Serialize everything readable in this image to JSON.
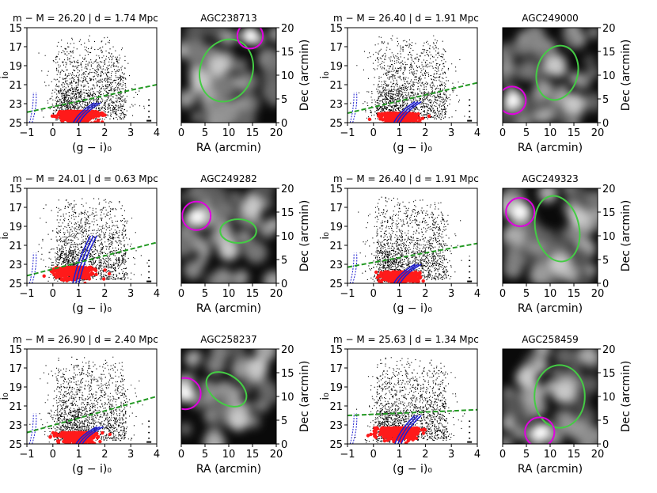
{
  "figure": {
    "cmd_ylabel": "i₀",
    "cmd_xlabel": "(g − i)₀",
    "map_xlabel": "RA (arcmin)",
    "map_ylabel": "Dec (arcmin)"
  },
  "colors": {
    "rgb_stars": "#ff1a1a",
    "isochrone": "#1f1fd0",
    "trgb_line": "#229922",
    "field_stars": "#000000",
    "galaxy_ellipse": "#44cc44",
    "overdensity_circle": "#e000e0"
  },
  "chart_data": [
    {
      "type": "scatter",
      "title": "m − M = 26.20 | d = 1.74 Mpc",
      "xlabel": "(g − i)₀",
      "ylabel": "i₀",
      "xlim": [
        -1,
        4
      ],
      "ylim": [
        25,
        15
      ],
      "xticks": [
        -1,
        0,
        1,
        2,
        3,
        4
      ],
      "yticks": [
        15,
        17,
        19,
        21,
        23,
        25
      ],
      "trgb_line": [
        [
          -1,
          23.9
        ],
        [
          4,
          21.0
        ]
      ],
      "isochrone_x": [
        0.75,
        1.6
      ],
      "isochrone_top": 22.9,
      "rgb_blob_center": [
        0.8,
        24.0
      ],
      "seed": 11
    },
    {
      "type": "heatmap",
      "title": "AGC238713",
      "xlabel": "RA (arcmin)",
      "ylabel": "Dec (arcmin)",
      "xlim": [
        0,
        20
      ],
      "ylim": [
        0,
        20
      ],
      "xticks": [
        0,
        5,
        10,
        15,
        20
      ],
      "yticks": [
        0,
        5,
        10,
        15,
        20
      ],
      "galaxy_ellipse": {
        "cx": 9.5,
        "cy": 11,
        "rx": 5.5,
        "ry": 6.7,
        "angle": 20
      },
      "overdensity_circle": {
        "cx": 14.5,
        "cy": 18.3,
        "r": 2.7
      },
      "bright_sources": [
        [
          14.5,
          18.3
        ],
        [
          8,
          12
        ],
        [
          4,
          9
        ]
      ],
      "seed": 21
    },
    {
      "type": "scatter",
      "title": "m − M = 26.40 | d = 1.91 Mpc",
      "xlabel": "(g − i)₀",
      "ylabel": "i₀",
      "xlim": [
        -1,
        4
      ],
      "ylim": [
        25,
        15
      ],
      "xticks": [
        -1,
        0,
        1,
        2,
        3,
        4
      ],
      "yticks": [
        15,
        17,
        19,
        21,
        23,
        25
      ],
      "trgb_line": [
        [
          -1,
          24.0
        ],
        [
          4,
          20.8
        ]
      ],
      "isochrone_x": [
        0.75,
        1.6
      ],
      "isochrone_top": 22.8,
      "rgb_blob_center": [
        0.8,
        24.2
      ],
      "seed": 12
    },
    {
      "type": "heatmap",
      "title": "AGC249000",
      "xlabel": "RA (arcmin)",
      "ylabel": "Dec (arcmin)",
      "xlim": [
        0,
        20
      ],
      "ylim": [
        0,
        20
      ],
      "galaxy_ellipse": {
        "cx": 11.5,
        "cy": 10.5,
        "rx": 4.3,
        "ry": 5.8,
        "angle": 15
      },
      "overdensity_circle": {
        "cx": 2.0,
        "cy": 4.7,
        "r": 2.9
      },
      "bright_sources": [
        [
          2.0,
          4.7
        ],
        [
          11,
          12
        ],
        [
          15,
          4
        ]
      ],
      "seed": 22
    },
    {
      "type": "scatter",
      "title": "m − M = 24.01 | d = 0.63 Mpc",
      "xlabel": "(g − i)₀",
      "ylabel": "i₀",
      "xlim": [
        -1,
        4
      ],
      "ylim": [
        25,
        15
      ],
      "xticks": [
        -1,
        0,
        1,
        2,
        3,
        4
      ],
      "yticks": [
        15,
        17,
        19,
        21,
        23,
        25
      ],
      "trgb_line": [
        [
          -1,
          24.2
        ],
        [
          4,
          20.7
        ]
      ],
      "isochrone_x": [
        0.75,
        1.45
      ],
      "isochrone_top": 20.0,
      "rgb_blob_center": [
        0.7,
        23.5
      ],
      "seed": 13
    },
    {
      "type": "heatmap",
      "title": "AGC249282",
      "xlabel": "RA (arcmin)",
      "ylabel": "Dec (arcmin)",
      "xlim": [
        0,
        20
      ],
      "ylim": [
        0,
        20
      ],
      "galaxy_ellipse": {
        "cx": 12,
        "cy": 11,
        "rx": 3.8,
        "ry": 2.5,
        "angle": 0
      },
      "overdensity_circle": {
        "cx": 3.2,
        "cy": 14.2,
        "r": 3.0
      },
      "bright_sources": [
        [
          3.2,
          14.2
        ],
        [
          10,
          7
        ],
        [
          15,
          16
        ]
      ],
      "seed": 23
    },
    {
      "type": "scatter",
      "title": "m − M = 26.40 | d = 1.91 Mpc",
      "xlabel": "(g − i)₀",
      "ylabel": "i₀",
      "xlim": [
        -1,
        4
      ],
      "ylim": [
        25,
        15
      ],
      "xticks": [
        -1,
        0,
        1,
        2,
        3,
        4
      ],
      "yticks": [
        15,
        17,
        19,
        21,
        23,
        25
      ],
      "trgb_line": [
        [
          -1,
          23.3
        ],
        [
          4,
          20.8
        ]
      ],
      "isochrone_x": [
        0.75,
        1.6
      ],
      "isochrone_top": 23.0,
      "rgb_blob_center": [
        0.9,
        24.0
      ],
      "seed": 14
    },
    {
      "type": "heatmap",
      "title": "AGC249323",
      "xlabel": "RA (arcmin)",
      "ylabel": "Dec (arcmin)",
      "xlim": [
        0,
        20
      ],
      "ylim": [
        0,
        20
      ],
      "galaxy_ellipse": {
        "cx": 11.5,
        "cy": 11.5,
        "rx": 4.6,
        "ry": 7.0,
        "angle": -12
      },
      "overdensity_circle": {
        "cx": 3.7,
        "cy": 15.0,
        "r": 3.0
      },
      "bright_sources": [
        [
          3.7,
          15.0
        ],
        [
          12,
          4
        ],
        [
          16,
          14
        ]
      ],
      "seed": 24
    },
    {
      "type": "scatter",
      "title": "m − M = 26.90 | d = 2.40 Mpc",
      "xlabel": "(g − i)₀",
      "ylabel": "i₀",
      "xlim": [
        -1,
        4
      ],
      "ylim": [
        25,
        15
      ],
      "xticks": [
        -1,
        0,
        1,
        2,
        3,
        4
      ],
      "yticks": [
        15,
        17,
        19,
        21,
        23,
        25
      ],
      "trgb_line": [
        [
          -1,
          23.8
        ],
        [
          4,
          20.0
        ]
      ],
      "isochrone_x": [
        0.85,
        1.7
      ],
      "isochrone_top": 23.2,
      "rgb_blob_center": [
        0.8,
        24.0
      ],
      "seed": 15
    },
    {
      "type": "heatmap",
      "title": "AGC258237",
      "xlabel": "RA (arcmin)",
      "ylabel": "Dec (arcmin)",
      "xlim": [
        0,
        20
      ],
      "ylim": [
        0,
        20
      ],
      "galaxy_ellipse": {
        "cx": 9.5,
        "cy": 11.5,
        "rx": 4.7,
        "ry": 3.0,
        "angle": 35
      },
      "overdensity_circle": {
        "cx": 0.8,
        "cy": 10.6,
        "r": 3.3
      },
      "bright_sources": [
        [
          0.8,
          10.6
        ],
        [
          12,
          5
        ],
        [
          16,
          16
        ]
      ],
      "seed": 25
    },
    {
      "type": "scatter",
      "title": "m − M = 25.63 | d = 1.34 Mpc",
      "xlabel": "(g − i)₀",
      "ylabel": "i₀",
      "xlim": [
        -1,
        4
      ],
      "ylim": [
        25,
        15
      ],
      "xticks": [
        -1,
        0,
        1,
        2,
        3,
        4
      ],
      "yticks": [
        15,
        17,
        19,
        21,
        23,
        25
      ],
      "trgb_line": [
        [
          -1,
          22.0
        ],
        [
          4,
          21.4
        ]
      ],
      "isochrone_x": [
        0.8,
        1.6
      ],
      "isochrone_top": 22.0,
      "rgb_blob_center": [
        0.8,
        23.5
      ],
      "seed": 16
    },
    {
      "type": "heatmap",
      "title": "AGC258459",
      "xlabel": "RA (arcmin)",
      "ylabel": "Dec (arcmin)",
      "xlim": [
        0,
        20
      ],
      "ylim": [
        0,
        20
      ],
      "galaxy_ellipse": {
        "cx": 12,
        "cy": 10,
        "rx": 5.3,
        "ry": 6.6,
        "angle": 0
      },
      "overdensity_circle": {
        "cx": 7.8,
        "cy": 2.5,
        "r": 3.1
      },
      "bright_sources": [
        [
          7.8,
          2.5
        ],
        [
          13,
          11
        ],
        [
          5,
          14
        ]
      ],
      "seed": 26
    }
  ]
}
